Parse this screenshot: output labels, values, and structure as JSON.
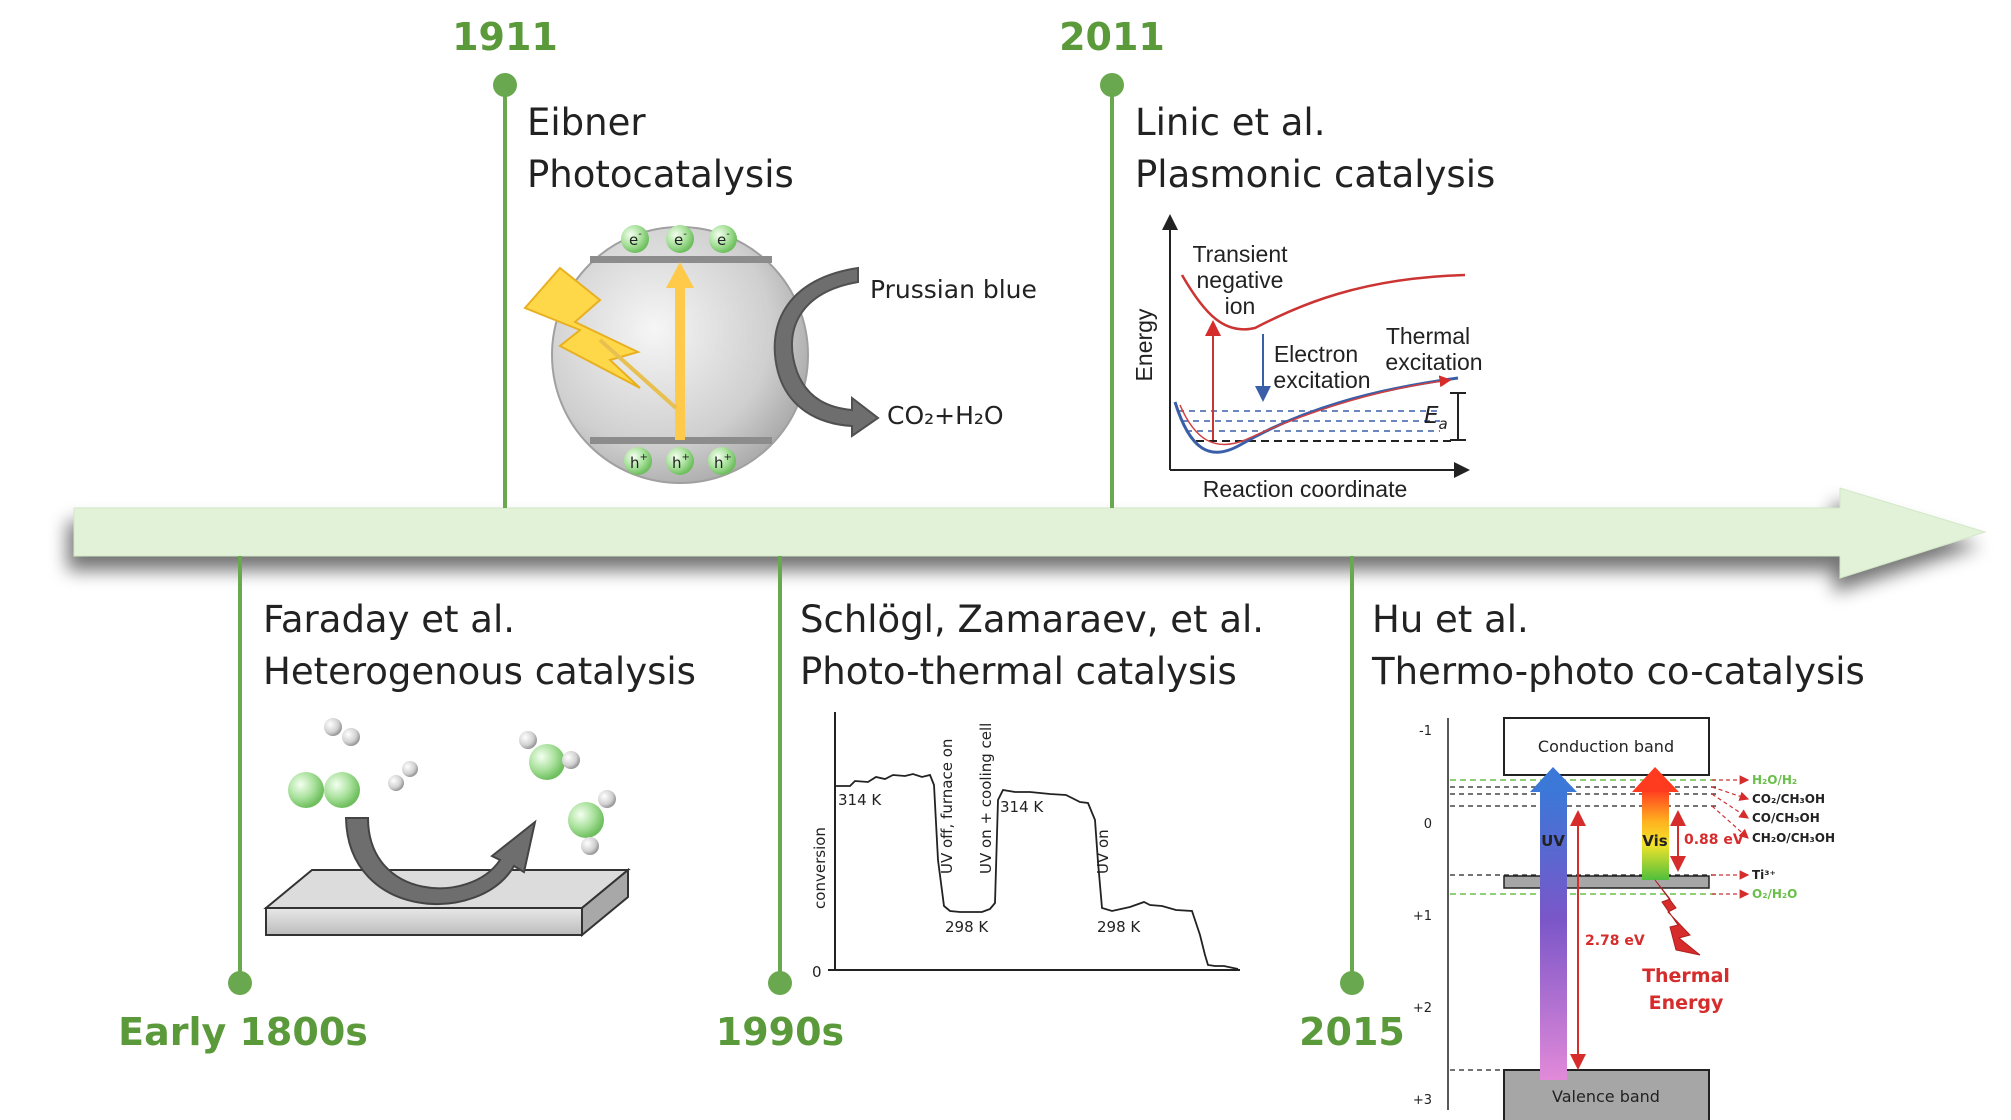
{
  "timeline": {
    "events": [
      {
        "year": "Early 1800s",
        "author": "Faraday et al.",
        "topic": "Heterogenous catalysis"
      },
      {
        "year": "1911",
        "author": "Eibner",
        "topic": "Photocatalysis"
      },
      {
        "year": "1990s",
        "author": "Schlögl, Zamaraev, et al.",
        "topic": "Photo-thermal catalysis"
      },
      {
        "year": "2011",
        "author": "Linic et al.",
        "topic": "Plasmonic catalysis"
      },
      {
        "year": "2015",
        "author": "Hu et al.",
        "topic": "Thermo-photo co-catalysis"
      }
    ],
    "colors": {
      "accent_green": "#5b9a3b",
      "arrow_fill": "#e2f2d8"
    }
  },
  "photocatalysis": {
    "electron": "e",
    "hole": "h",
    "electron_sup": "-",
    "hole_sup": "+",
    "reactant": "Prussian blue",
    "product": "CO₂+H₂O"
  },
  "plasmonic": {
    "ylabel": "Energy",
    "xlabel": "Reaction coordinate",
    "transient_1": "Transient",
    "transient_2": "negative",
    "transient_3": "ion",
    "electron_1": "Electron",
    "electron_2": "excitation",
    "thermal_1": "Thermal",
    "thermal_2": "excitation",
    "ea": "E",
    "ea_sub": "a"
  },
  "photothermal": {
    "ylabel": "conversion",
    "zero": "0",
    "t1": "314 K",
    "t2": "298 K",
    "t3": "314 K",
    "t4": "298 K",
    "a1": "UV off, furnace on",
    "a2": "UV on + cooling cell",
    "a3": "UV on"
  },
  "cocatalysis": {
    "yticks": [
      "-1",
      "0",
      "+1",
      "+2",
      "+3"
    ],
    "cb": "Conduction band",
    "vb": "Valence band",
    "uv": "UV",
    "vis": "Vis",
    "gap_uv": "2.78 eV",
    "gap_vis": "0.88 eV",
    "thermal_1": "Thermal",
    "thermal_2": "Energy",
    "levels": [
      "H₂O/H₂",
      "CO₂/CH₃OH",
      "CO/CH₃OH",
      "CH₂O/CH₃OH",
      "Ti³⁺",
      "O₂/H₂O"
    ]
  }
}
